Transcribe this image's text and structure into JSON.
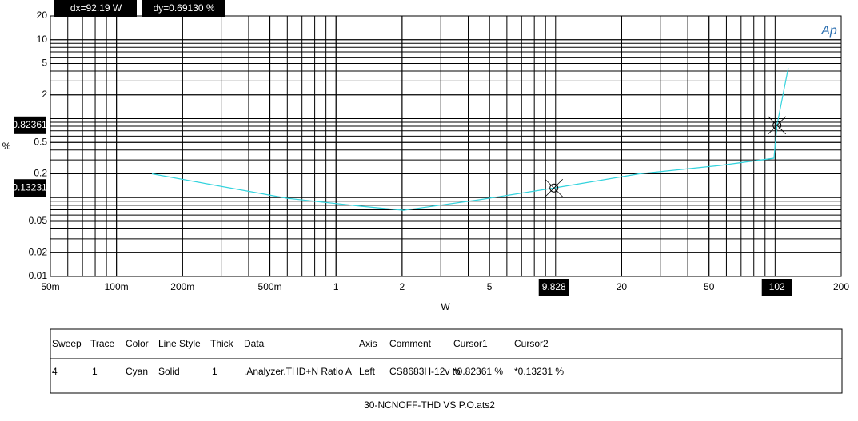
{
  "chart_data": {
    "type": "line",
    "xlabel": "W",
    "ylabel": "%",
    "logo": "Ap",
    "log_x": true,
    "log_y": true,
    "xlim": [
      0.05,
      200
    ],
    "ylim": [
      0.01,
      20
    ],
    "xticks": [
      {
        "value": 0.05,
        "label": "50m"
      },
      {
        "value": 0.1,
        "label": "100m"
      },
      {
        "value": 0.2,
        "label": "200m"
      },
      {
        "value": 0.5,
        "label": "500m"
      },
      1,
      2,
      5,
      20,
      50,
      200
    ],
    "yticks": [
      20,
      10,
      5,
      2,
      0.5,
      0.2,
      0.05,
      0.02,
      0.01
    ],
    "grid": true,
    "series": [
      {
        "name": ".Analyzer.THD+N Ratio A",
        "color": "#33d3dd",
        "x": [
          0.145,
          0.6,
          1.28,
          2.03,
          4.51,
          9.828,
          24.1,
          55.8,
          98.8,
          102,
          114.8
        ],
        "values": [
          0.2,
          0.098,
          0.078,
          0.069,
          0.094,
          0.13231,
          0.2,
          0.255,
          0.315,
          0.82361,
          4.38
        ]
      }
    ],
    "cursors": [
      {
        "x": 9.828,
        "y": 0.13231
      },
      {
        "x": 102,
        "y": 0.82361
      }
    ],
    "readouts": [
      "dx=92.19  W",
      "dy=0.69130  %"
    ],
    "legend_table": {
      "headers": [
        "Sweep",
        "Trace",
        "Color",
        "Line Style",
        "Thick",
        "Data",
        "Axis",
        "Comment",
        "Cursor1",
        "Cursor2"
      ],
      "rows": [
        [
          "4",
          "1",
          "Cyan",
          "Solid",
          "1",
          ".Analyzer.THD+N Ratio A",
          "Left",
          "CS8683H-12v to",
          "*0.82361  %",
          "*0.13231  %"
        ]
      ]
    },
    "filename": "30-NCNOFF-THD VS P.O.ats2"
  }
}
